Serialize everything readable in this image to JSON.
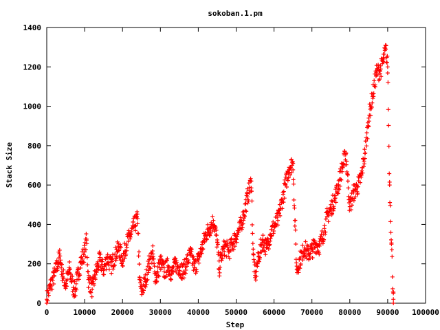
{
  "chart_data": {
    "type": "scatter",
    "title": "sokoban.1.pm",
    "xlabel": "Step",
    "ylabel": "Stack Size",
    "xlim": [
      0,
      100000
    ],
    "ylim": [
      0,
      1400
    ],
    "x_ticks": [
      "0",
      "10000",
      "20000",
      "30000",
      "40000",
      "50000",
      "60000",
      "70000",
      "80000",
      "90000",
      "100000"
    ],
    "y_ticks": [
      "0",
      "200",
      "400",
      "600",
      "800",
      "1000",
      "1200",
      "1400"
    ],
    "grid": false,
    "legend": "none",
    "marker": "+",
    "color": "#ff0000",
    "series": [
      {
        "x": [
          0,
          1000,
          2000,
          3000,
          3500,
          4000,
          5000,
          6000,
          7000,
          7500,
          8000,
          9000,
          10000,
          10500,
          11000,
          12000,
          13000,
          14000,
          15000,
          16000,
          17000,
          18000,
          19000,
          20000,
          21000,
          22000,
          23000,
          24000,
          24500,
          25000,
          26000,
          27000,
          28000,
          28500,
          29000,
          30000,
          31000,
          32000,
          33000,
          34000,
          35000,
          36000,
          37000,
          38000,
          39000,
          40000,
          41000,
          42000,
          43000,
          44000,
          45000,
          45500,
          46000,
          47000,
          48000,
          49000,
          50000,
          51000,
          52000,
          53000,
          54000,
          54500,
          55000,
          56000,
          57000,
          58000,
          59000,
          60000,
          61000,
          62000,
          63000,
          64000,
          65000,
          65500,
          66000,
          67000,
          68000,
          69000,
          70000,
          71000,
          72000,
          73000,
          74000,
          75000,
          76000,
          77000,
          78000,
          79000,
          79500,
          80000,
          81000,
          82000,
          83000,
          84000,
          85000,
          86000,
          87000,
          88000,
          89000,
          89500,
          90000,
          90500,
          91000,
          91500
        ],
        "y": [
          20,
          90,
          140,
          210,
          240,
          160,
          90,
          170,
          80,
          60,
          120,
          210,
          260,
          320,
          120,
          70,
          160,
          220,
          170,
          230,
          190,
          240,
          280,
          220,
          300,
          340,
          390,
          430,
          120,
          60,
          110,
          200,
          250,
          150,
          130,
          210,
          160,
          190,
          150,
          200,
          180,
          160,
          210,
          250,
          180,
          220,
          280,
          350,
          380,
          420,
          310,
          170,
          230,
          290,
          260,
          300,
          340,
          380,
          450,
          540,
          620,
          250,
          130,
          240,
          320,
          280,
          350,
          390,
          420,
          510,
          600,
          690,
          710,
          420,
          170,
          230,
          280,
          250,
          270,
          300,
          290,
          350,
          440,
          480,
          530,
          600,
          690,
          760,
          620,
          490,
          560,
          590,
          640,
          760,
          940,
          1050,
          1170,
          1180,
          1240,
          1290,
          1200,
          600,
          300,
          20
        ]
      }
    ]
  }
}
